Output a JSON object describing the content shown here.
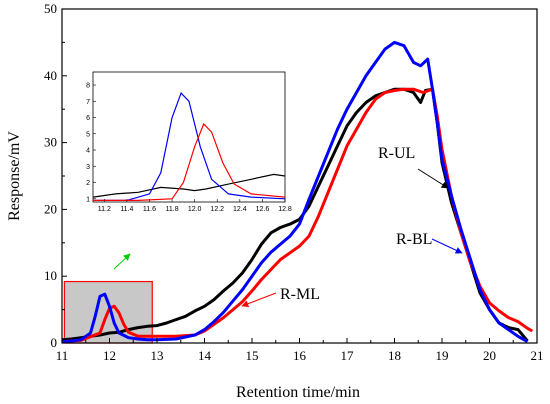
{
  "chart_data": {
    "type": "line",
    "xlabel": "Retention time/min",
    "ylabel": "Response/mV",
    "xlim": [
      11,
      21
    ],
    "ylim": [
      0,
      50
    ],
    "xticks": [
      "11",
      "12",
      "13",
      "14",
      "15",
      "16",
      "17",
      "18",
      "19",
      "20",
      "21"
    ],
    "yticks": [
      "0",
      "10",
      "20",
      "30",
      "40",
      "50"
    ],
    "grid": false,
    "colors": {
      "R-UL": "#000000",
      "R-BL": "#0000ff",
      "R-ML": "#ff0000",
      "green_arrow": "#00cc00",
      "box_fill": "#c8c8c8",
      "box_stroke": "#ff0000"
    },
    "series": [
      {
        "name": "R-UL",
        "x": [
          11,
          11.2,
          11.4,
          11.6,
          11.8,
          12.0,
          12.2,
          12.4,
          12.6,
          12.8,
          13.0,
          13.2,
          13.4,
          13.6,
          13.8,
          14.0,
          14.2,
          14.4,
          14.6,
          14.8,
          15.0,
          15.2,
          15.4,
          15.6,
          15.8,
          16.0,
          16.2,
          16.4,
          16.6,
          16.8,
          17.0,
          17.2,
          17.4,
          17.6,
          17.8,
          18.0,
          18.2,
          18.4,
          18.55,
          18.65,
          18.8,
          18.9,
          19.0,
          19.2,
          19.4,
          19.6,
          19.8,
          20.0,
          20.2,
          20.4,
          20.6,
          20.8
        ],
        "y": [
          0.5,
          0.6,
          0.8,
          1.0,
          1.2,
          1.5,
          1.6,
          2.0,
          2.3,
          2.5,
          2.6,
          3.0,
          3.5,
          4.0,
          4.8,
          5.5,
          6.5,
          7.8,
          9.0,
          10.5,
          12.5,
          14.8,
          16.5,
          17.3,
          17.8,
          18.5,
          20.5,
          23.5,
          26.5,
          29.5,
          32.5,
          34.5,
          36.0,
          37.0,
          37.5,
          38.0,
          38.0,
          37.5,
          36.0,
          37.8,
          38.0,
          33.0,
          27.0,
          21.0,
          16.5,
          12.0,
          7.5,
          5.0,
          3.0,
          2.3,
          2.0,
          0.3
        ]
      },
      {
        "name": "R-BL",
        "x": [
          11,
          11.2,
          11.4,
          11.6,
          11.7,
          11.8,
          11.9,
          12.0,
          12.1,
          12.2,
          12.4,
          12.6,
          12.8,
          13.0,
          13.4,
          13.8,
          14.0,
          14.2,
          14.4,
          14.6,
          14.8,
          15.0,
          15.2,
          15.4,
          15.6,
          15.8,
          16.0,
          16.2,
          16.4,
          16.6,
          16.8,
          17.0,
          17.2,
          17.4,
          17.6,
          17.8,
          18.0,
          18.2,
          18.4,
          18.55,
          18.7,
          18.8,
          18.9,
          19.0,
          19.2,
          19.4,
          19.6,
          19.8,
          20.0,
          20.2,
          20.4,
          20.6,
          20.8
        ],
        "y": [
          0.2,
          0.3,
          0.5,
          1.5,
          4.0,
          7.0,
          7.3,
          5.5,
          3.0,
          1.5,
          0.8,
          0.6,
          0.5,
          0.5,
          0.6,
          1.2,
          2.0,
          3.2,
          4.6,
          6.3,
          8.0,
          10.0,
          12.0,
          13.6,
          14.8,
          16.0,
          17.8,
          21.5,
          25.0,
          28.5,
          32.0,
          35.0,
          37.5,
          40.0,
          42.0,
          44.0,
          45.0,
          44.5,
          42.0,
          41.5,
          42.5,
          38.0,
          33.0,
          27.5,
          22.0,
          17.0,
          12.5,
          8.0,
          5.0,
          3.0,
          2.0,
          1.0,
          0.2
        ]
      },
      {
        "name": "R-ML",
        "x": [
          11,
          11.4,
          11.8,
          11.9,
          12.0,
          12.1,
          12.2,
          12.3,
          12.4,
          12.6,
          13.0,
          13.4,
          13.8,
          14.0,
          14.2,
          14.4,
          14.6,
          14.8,
          15.0,
          15.2,
          15.4,
          15.6,
          15.8,
          16.0,
          16.2,
          16.4,
          16.6,
          16.8,
          17.0,
          17.2,
          17.4,
          17.6,
          17.8,
          18.0,
          18.2,
          18.4,
          18.6,
          18.8,
          18.9,
          19.0,
          19.2,
          19.4,
          19.6,
          19.8,
          20.0,
          20.2,
          20.4,
          20.6,
          20.8,
          20.9
        ],
        "y": [
          0.2,
          0.4,
          1.5,
          3.5,
          5.2,
          5.5,
          4.5,
          2.8,
          1.6,
          1.0,
          1.0,
          1.0,
          1.2,
          1.8,
          2.8,
          3.8,
          5.0,
          6.2,
          7.8,
          9.5,
          11.0,
          12.5,
          13.5,
          14.5,
          16.0,
          19.0,
          22.5,
          26.0,
          29.5,
          32.0,
          34.5,
          36.5,
          37.5,
          37.8,
          38.0,
          38.0,
          37.5,
          38.0,
          34.0,
          29.0,
          22.0,
          16.5,
          12.0,
          8.5,
          6.0,
          4.8,
          3.8,
          3.2,
          2.2,
          1.8
        ]
      }
    ],
    "annotations": [
      {
        "label": "R-UL",
        "series": "R-UL",
        "x": 18.9,
        "y": 27.0
      },
      {
        "label": "R-BL",
        "series": "R-BL",
        "x": 19.8,
        "y": 13.5
      },
      {
        "label": "R-ML",
        "series": "R-ML",
        "x": 15.1,
        "y": 7.3
      }
    ],
    "zoom_box": {
      "x": [
        11.05,
        12.9
      ],
      "y": [
        0.0,
        9.2
      ]
    },
    "inset": {
      "xlim": [
        11.1,
        12.8
      ],
      "ylim": [
        0.8,
        8.8
      ],
      "xticks": [
        "11.2",
        "11.4",
        "11.6",
        "11.8",
        "12.0",
        "12.2",
        "12.4",
        "12.6",
        "12.8"
      ],
      "yticks": [
        "1",
        "2",
        "3",
        "4",
        "5",
        "6",
        "7",
        "8"
      ]
    }
  }
}
